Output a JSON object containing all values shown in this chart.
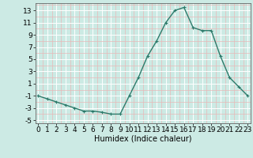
{
  "x": [
    0,
    1,
    2,
    3,
    4,
    5,
    6,
    7,
    8,
    9,
    10,
    11,
    12,
    13,
    14,
    15,
    16,
    17,
    18,
    19,
    20,
    21,
    22,
    23
  ],
  "y": [
    -1,
    -1.5,
    -2,
    -2.5,
    -3,
    -3.5,
    -3.5,
    -3.7,
    -4,
    -4,
    -1,
    2,
    5.5,
    8,
    11,
    13,
    13.5,
    10.2,
    9.7,
    9.7,
    5.5,
    2,
    0.5,
    -1
  ],
  "line_color": "#2d7b6b",
  "marker": "+",
  "marker_size": 3,
  "bg_color": "#cceae4",
  "major_grid_color": "#ffffff",
  "minor_grid_color": "#e8b8b8",
  "xlabel": "Humidex (Indice chaleur)",
  "xlabel_fontsize": 7,
  "ytick_labels": [
    "-5",
    "-3",
    "-1",
    "1",
    "3",
    "5",
    "7",
    "9",
    "11",
    "13"
  ],
  "ytick_vals": [
    -5,
    -3,
    -1,
    1,
    3,
    5,
    7,
    9,
    11,
    13
  ],
  "xtick_vals": [
    0,
    1,
    2,
    3,
    4,
    5,
    6,
    7,
    8,
    9,
    10,
    11,
    12,
    13,
    14,
    15,
    16,
    17,
    18,
    19,
    20,
    21,
    22,
    23
  ],
  "xlim": [
    -0.3,
    23.3
  ],
  "ylim": [
    -5.5,
    14.2
  ],
  "tick_fontsize": 6.5,
  "linewidth": 1.0
}
